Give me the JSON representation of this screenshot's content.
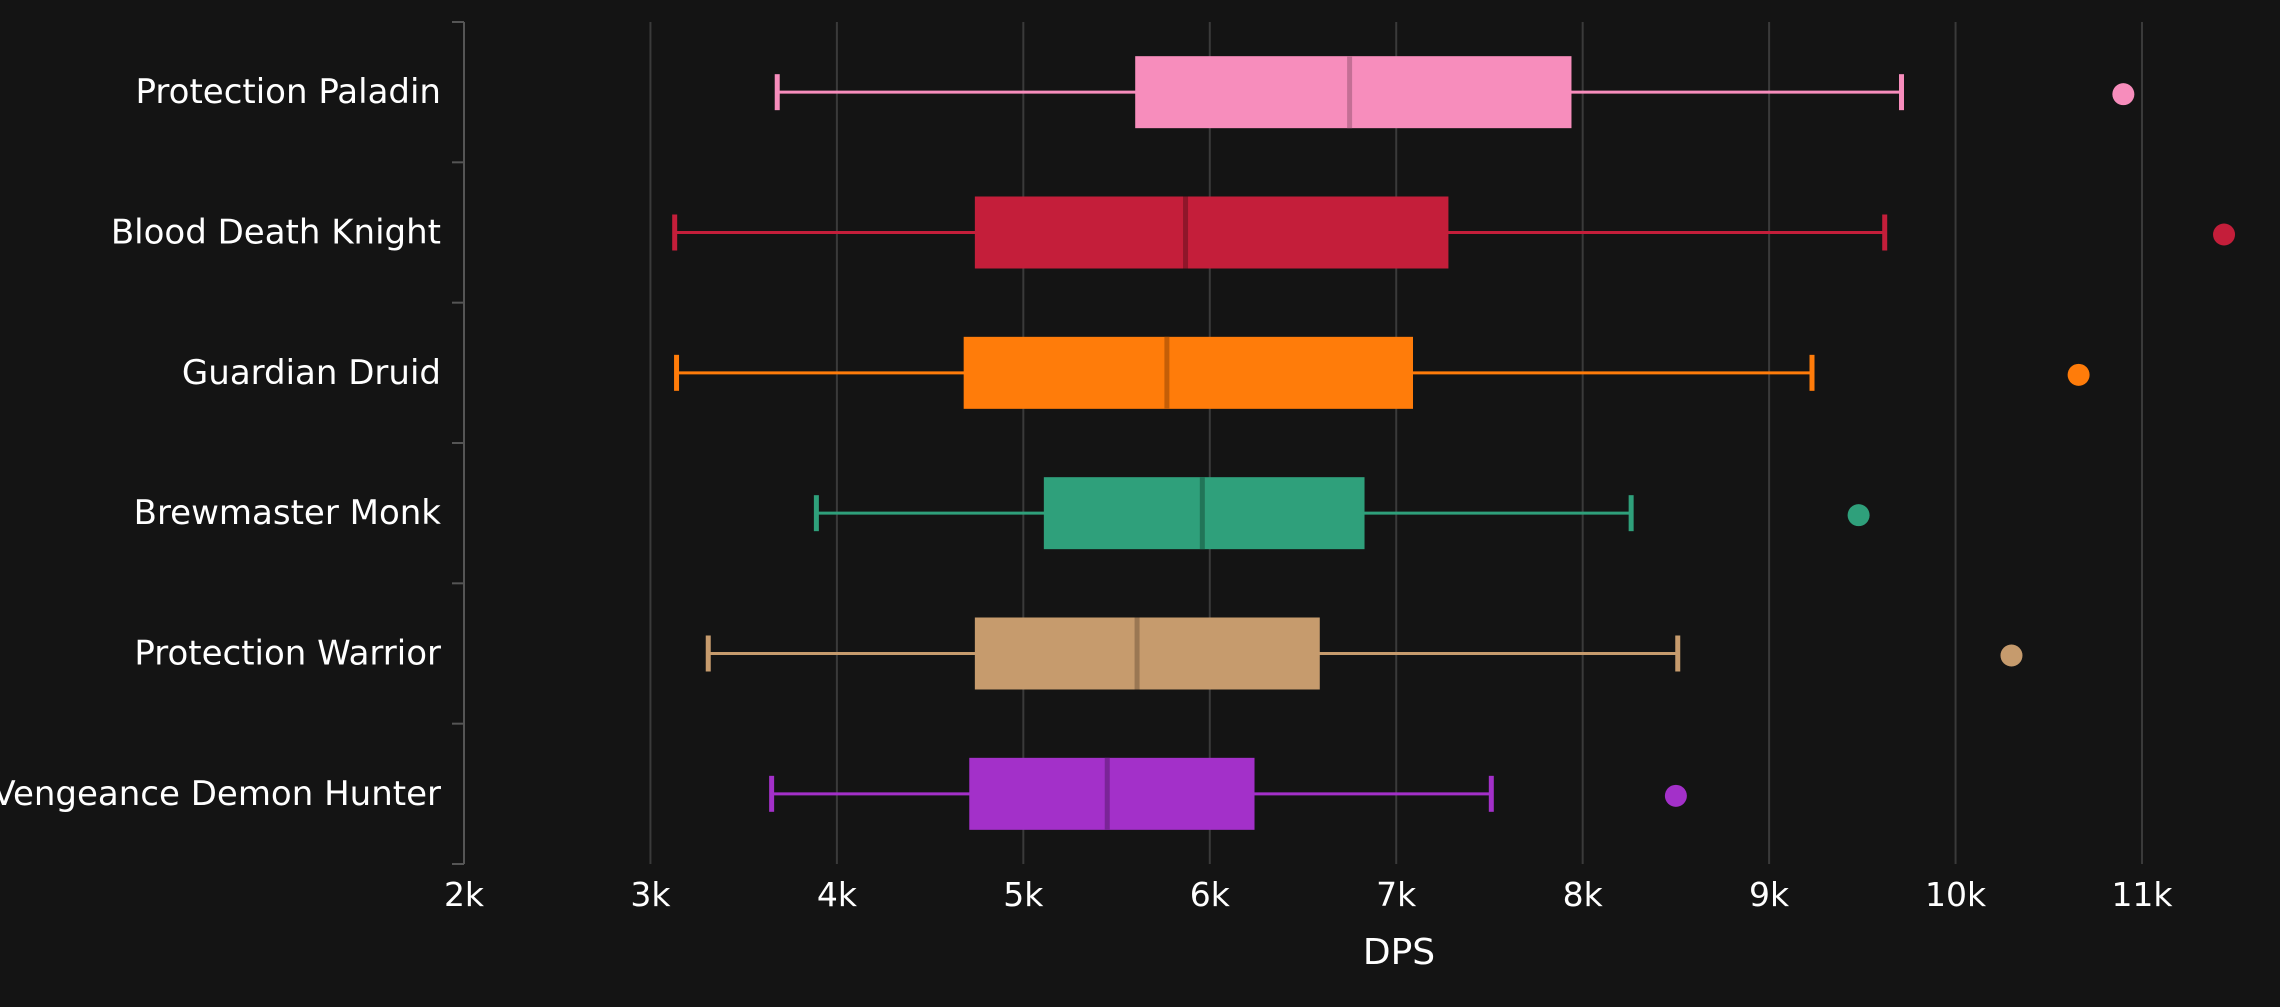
{
  "chart_data": {
    "type": "boxplot",
    "orientation": "horizontal",
    "title": "",
    "xlabel": "DPS",
    "ylabel": "",
    "xlim": [
      2000,
      11000
    ],
    "xticks": [
      2000,
      3000,
      4000,
      5000,
      6000,
      7000,
      8000,
      9000,
      10000,
      11000
    ],
    "xtick_labels": [
      "2k",
      "3k",
      "4k",
      "5k",
      "6k",
      "7k",
      "8k",
      "9k",
      "10k",
      "11k"
    ],
    "grid": "vertical",
    "series": [
      {
        "name": "Protection Paladin",
        "color": "#f78dbc",
        "median_color": "#c46f95",
        "min": 3680,
        "q1": 5600,
        "median": 6750,
        "q3": 7940,
        "max": 9710,
        "outliers": [
          10900
        ]
      },
      {
        "name": "Blood Death Knight",
        "color": "#c41e3a",
        "median_color": "#8f162a",
        "min": 3130,
        "q1": 4740,
        "median": 5870,
        "q3": 7280,
        "max": 9620,
        "outliers": [
          11440
        ]
      },
      {
        "name": "Guardian Druid",
        "color": "#ff7c0a",
        "median_color": "#c45e07",
        "min": 3140,
        "q1": 4680,
        "median": 5770,
        "q3": 7090,
        "max": 9230,
        "outliers": [
          10660
        ]
      },
      {
        "name": "Brewmaster Monk",
        "color": "#2fa07b",
        "median_color": "#217558",
        "min": 3890,
        "q1": 5110,
        "median": 5960,
        "q3": 6830,
        "max": 8260,
        "outliers": [
          9480
        ]
      },
      {
        "name": "Protection Warrior",
        "color": "#c69b6d",
        "median_color": "#9a7753",
        "min": 3310,
        "q1": 4740,
        "median": 5610,
        "q3": 6590,
        "max": 8510,
        "outliers": [
          10300
        ]
      },
      {
        "name": "Vengeance Demon Hunter",
        "color": "#a330c9",
        "median_color": "#7a2497",
        "min": 3650,
        "q1": 4710,
        "median": 5450,
        "q3": 6240,
        "max": 7510,
        "outliers": [
          8500
        ]
      }
    ]
  }
}
